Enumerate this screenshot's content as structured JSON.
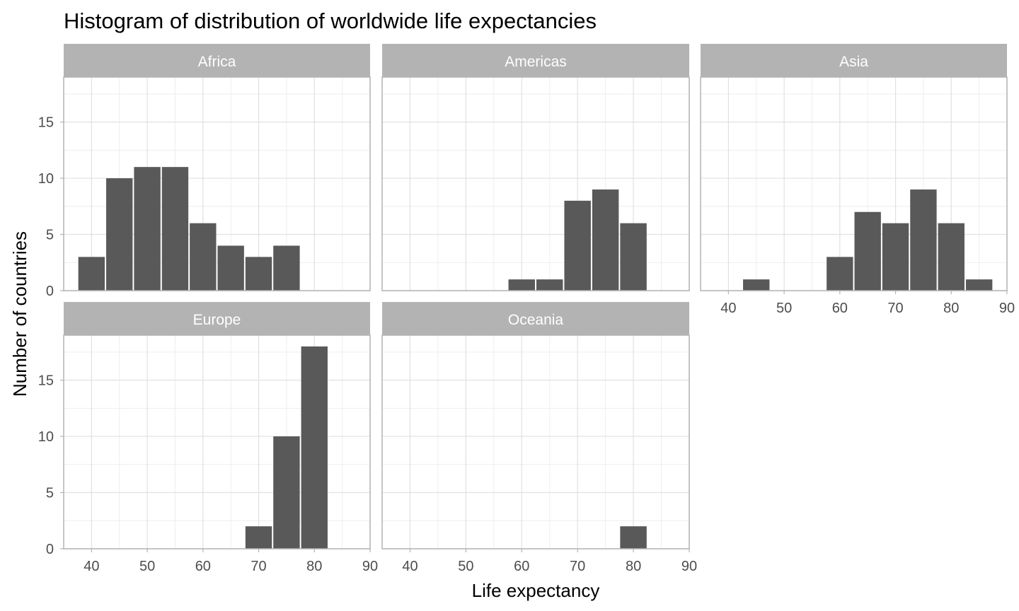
{
  "chart_data": {
    "type": "bar",
    "title": "Histogram of distribution of worldwide life expectancies",
    "xlabel": "Life expectancy",
    "ylabel": "Number of countries",
    "xlim": [
      35,
      90
    ],
    "ylim": [
      0,
      19
    ],
    "x_ticks": [
      "40",
      "50",
      "60",
      "70",
      "80",
      "90"
    ],
    "y_ticks": [
      "0",
      "5",
      "10",
      "15"
    ],
    "bin_width": 5,
    "grid": true,
    "colors": {
      "bar": "#595959",
      "strip": "#b3b3b3",
      "grid": "#e0e0e0",
      "panel_border": "#b3b3b3"
    },
    "panels": [
      {
        "name": "Africa",
        "bins": [
          {
            "x": 40,
            "count": 3
          },
          {
            "x": 45,
            "count": 10
          },
          {
            "x": 50,
            "count": 11
          },
          {
            "x": 55,
            "count": 11
          },
          {
            "x": 60,
            "count": 6
          },
          {
            "x": 65,
            "count": 4
          },
          {
            "x": 70,
            "count": 3
          },
          {
            "x": 75,
            "count": 4
          }
        ]
      },
      {
        "name": "Americas",
        "bins": [
          {
            "x": 60,
            "count": 1
          },
          {
            "x": 65,
            "count": 1
          },
          {
            "x": 70,
            "count": 8
          },
          {
            "x": 75,
            "count": 9
          },
          {
            "x": 80,
            "count": 6
          }
        ]
      },
      {
        "name": "Asia",
        "bins": [
          {
            "x": 45,
            "count": 1
          },
          {
            "x": 60,
            "count": 3
          },
          {
            "x": 65,
            "count": 7
          },
          {
            "x": 70,
            "count": 6
          },
          {
            "x": 75,
            "count": 9
          },
          {
            "x": 80,
            "count": 6
          },
          {
            "x": 85,
            "count": 1
          }
        ]
      },
      {
        "name": "Europe",
        "bins": [
          {
            "x": 70,
            "count": 2
          },
          {
            "x": 75,
            "count": 10
          },
          {
            "x": 80,
            "count": 18
          }
        ]
      },
      {
        "name": "Oceania",
        "bins": [
          {
            "x": 80,
            "count": 2
          }
        ]
      }
    ]
  }
}
